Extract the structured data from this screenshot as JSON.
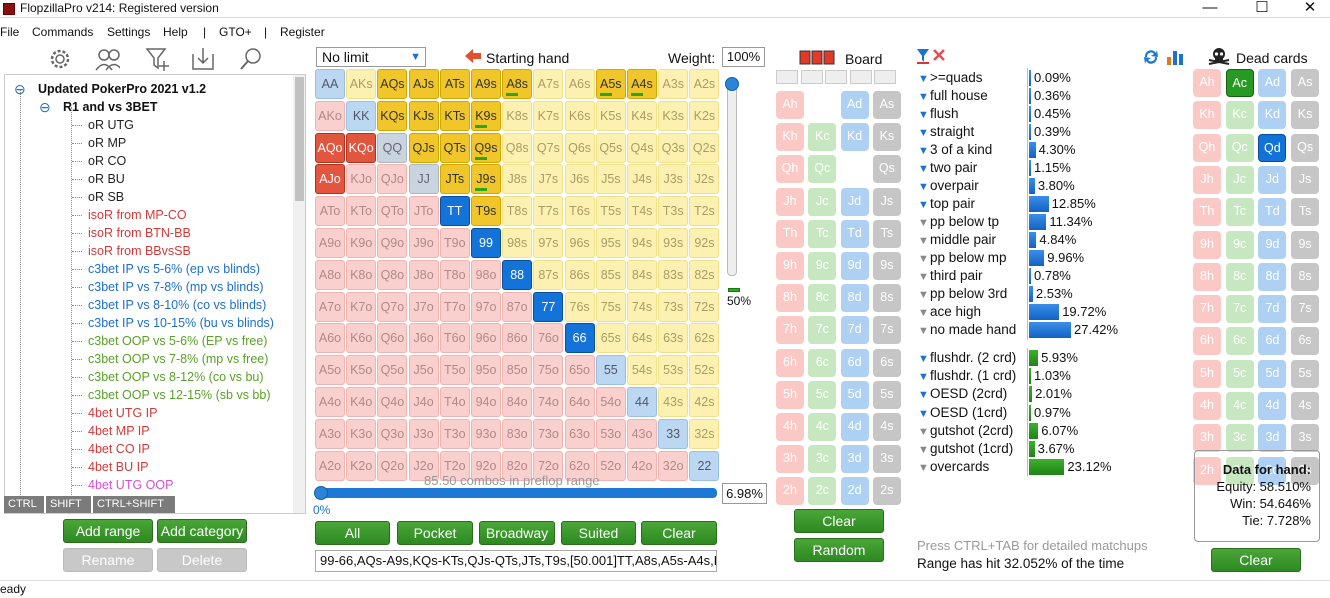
{
  "window": {
    "title": "FlopzillaPro v214: Registered version"
  },
  "menu": [
    "File",
    "Commands",
    "Settings",
    "Help",
    "|",
    "GTO+",
    "|",
    "Register"
  ],
  "tree": [
    {
      "label": "Updated PokerPro 2021 v1.2",
      "level": 0,
      "color": "#111",
      "bold": true,
      "toggle": "⊖"
    },
    {
      "label": "R1 and vs 3BET",
      "level": 1,
      "color": "#111",
      "bold": true,
      "toggle": "⊖"
    },
    {
      "label": "oR UTG",
      "level": 2,
      "color": "#222"
    },
    {
      "label": "oR MP",
      "level": 2,
      "color": "#222"
    },
    {
      "label": "oR CO",
      "level": 2,
      "color": "#222"
    },
    {
      "label": "oR BU",
      "level": 2,
      "color": "#222"
    },
    {
      "label": "oR SB",
      "level": 2,
      "color": "#222"
    },
    {
      "label": "isoR from MP-CO",
      "level": 2,
      "color": "#d23a3a"
    },
    {
      "label": "isoR from BTN-BB",
      "level": 2,
      "color": "#d23a3a"
    },
    {
      "label": "isoR from BBvsSB",
      "level": 2,
      "color": "#d23a3a"
    },
    {
      "label": "c3bet IP vs 5-6% (ep vs blinds)",
      "level": 2,
      "color": "#1d6fc9"
    },
    {
      "label": "c3bet IP vs 7-8% (mp vs blinds)",
      "level": 2,
      "color": "#1d6fc9"
    },
    {
      "label": "c3bet IP vs 8-10% (co vs blinds)",
      "level": 2,
      "color": "#1d6fc9"
    },
    {
      "label": "c3bet IP vs 10-15% (bu vs blinds)",
      "level": 2,
      "color": "#1d6fc9"
    },
    {
      "label": "c3bet OOP vs 5-6% (EP vs free)",
      "level": 2,
      "color": "#5aa02a"
    },
    {
      "label": "c3bet OOP vs 7-8% (mp vs free)",
      "level": 2,
      "color": "#5aa02a"
    },
    {
      "label": "c3bet OOP vs 8-12% (co vs bu)",
      "level": 2,
      "color": "#5aa02a"
    },
    {
      "label": "c3bet OOP vs 12-15% (sb vs bb)",
      "level": 2,
      "color": "#5aa02a"
    },
    {
      "label": "4bet UTG IP",
      "level": 2,
      "color": "#d23a3a"
    },
    {
      "label": "4bet MP IP",
      "level": 2,
      "color": "#d23a3a"
    },
    {
      "label": "4bet CO IP",
      "level": 2,
      "color": "#d23a3a"
    },
    {
      "label": "4bet BU IP",
      "level": 2,
      "color": "#d23a3a"
    },
    {
      "label": "4bet UTG OOP",
      "level": 2,
      "color": "#d552d5"
    }
  ],
  "tabs": [
    "CTRL",
    "SHIFT",
    "CTRL+SHIFT"
  ],
  "tree_buttons": {
    "add_range": "Add range",
    "add_category": "Add category",
    "rename": "Rename",
    "delete": "Delete"
  },
  "range": {
    "limit": "No limit",
    "starting_hand": "Starting hand",
    "weight_label": "Weight:",
    "weight": "100%",
    "vslider_pct": "50%",
    "combos_text": "85.50 combos in preflop range",
    "pct_text": "6.98%",
    "hslider_pct": "0%",
    "range_text": "99-66,AQs-A9s,KQs-KTs,QJs-QTs,JTs,T9s,[50.001]TT,A8s,A5s-A4s,K",
    "buttons": [
      "All",
      "Pocket",
      "Broadway",
      "Suited",
      "Clear"
    ]
  },
  "grid": {
    "ranks": [
      "A",
      "K",
      "Q",
      "J",
      "T",
      "9",
      "8",
      "7",
      "6",
      "5",
      "4",
      "3",
      "2"
    ],
    "gold": [
      "AQs",
      "AJs",
      "ATs",
      "A9s",
      "A8s",
      "A5s",
      "A4s",
      "KQs",
      "KJs",
      "KTs",
      "K9s",
      "QJs",
      "QTs",
      "Q9s",
      "JTs",
      "J9s",
      "T9s"
    ],
    "redsel": [
      "AQo",
      "KQo",
      "AJo"
    ],
    "bluesel": [
      "TT",
      "99",
      "88",
      "77",
      "66"
    ],
    "lblue": [
      "AA",
      "KK",
      "55",
      "44",
      "33",
      "22"
    ],
    "gray": [
      "QQ",
      "JJ"
    ],
    "bars": {
      "A8s": 0.5,
      "A5s": 0.5,
      "A4s": 0.5,
      "K9s": 0.5,
      "Q9s": 0.5,
      "J9s": 0.5
    }
  },
  "board": {
    "label": "Board",
    "buttons": {
      "clear": "Clear",
      "random": "Random"
    }
  },
  "dead": {
    "label": "Dead cards",
    "clear": "Clear"
  },
  "cards": {
    "ranks": [
      "A",
      "K",
      "Q",
      "J",
      "T",
      "9",
      "8",
      "7",
      "6",
      "5",
      "4",
      "3",
      "2"
    ],
    "suits": [
      "h",
      "c",
      "d",
      "s"
    ]
  },
  "stats": [
    {
      "label": ">=quads",
      "pct": "0.09%",
      "val": 0.09,
      "color": "#1b72d0"
    },
    {
      "label": "full house",
      "pct": "0.36%",
      "val": 0.36,
      "color": "#1b72d0"
    },
    {
      "label": "flush",
      "pct": "0.45%",
      "val": 0.45,
      "color": "#1b72d0"
    },
    {
      "label": "straight",
      "pct": "0.39%",
      "val": 0.39,
      "color": "#1b72d0"
    },
    {
      "label": "3 of a kind",
      "pct": "4.30%",
      "val": 4.3,
      "color": "#1b72d0"
    },
    {
      "label": "two pair",
      "pct": "1.15%",
      "val": 1.15,
      "color": "#1b72d0"
    },
    {
      "label": "overpair",
      "pct": "3.80%",
      "val": 3.8,
      "color": "#1b72d0"
    },
    {
      "label": "top pair",
      "pct": "12.85%",
      "val": 12.85,
      "color": "#1b72d0"
    },
    {
      "label": "pp below tp",
      "pct": "11.34%",
      "val": 11.34,
      "color": "#888"
    },
    {
      "label": "middle pair",
      "pct": "4.84%",
      "val": 4.84,
      "color": "#888"
    },
    {
      "label": "pp below mp",
      "pct": "9.96%",
      "val": 9.96,
      "color": "#888"
    },
    {
      "label": "third pair",
      "pct": "0.78%",
      "val": 0.78,
      "color": "#888"
    },
    {
      "label": "pp below 3rd",
      "pct": "2.53%",
      "val": 2.53,
      "color": "#888"
    },
    {
      "label": "ace high",
      "pct": "19.72%",
      "val": 19.72,
      "color": "#888"
    },
    {
      "label": "no made hand",
      "pct": "27.42%",
      "val": 27.42,
      "color": "#888"
    }
  ],
  "draws": [
    {
      "label": "flushdr. (2 crd)",
      "pct": "5.93%",
      "val": 5.93,
      "color": "#1b72d0"
    },
    {
      "label": "flushdr. (1 crd)",
      "pct": "1.03%",
      "val": 1.03,
      "color": "#1b72d0"
    },
    {
      "label": "OESD (2crd)",
      "pct": "2.01%",
      "val": 2.01,
      "color": "#1b72d0"
    },
    {
      "label": "OESD (1crd)",
      "pct": "0.97%",
      "val": 0.97,
      "color": "#1b72d0"
    },
    {
      "label": "gutshot (2crd)",
      "pct": "6.07%",
      "val": 6.07,
      "color": "#888"
    },
    {
      "label": "gutshot (1crd)",
      "pct": "3.67%",
      "val": 3.67,
      "color": "#888"
    },
    {
      "label": "overcards",
      "pct": "23.12%",
      "val": 23.12,
      "color": "#888"
    }
  ],
  "footer": {
    "hint": "Press CTRL+TAB for detailed matchups",
    "hit": "Range has hit 32.052% of the time"
  },
  "hand_data": {
    "title": "Data for hand:",
    "equity": "Equity: 58.510%",
    "win": "Win: 54.646%",
    "tie": "Tie: 7.728%"
  },
  "status": {
    "text": "eady"
  }
}
